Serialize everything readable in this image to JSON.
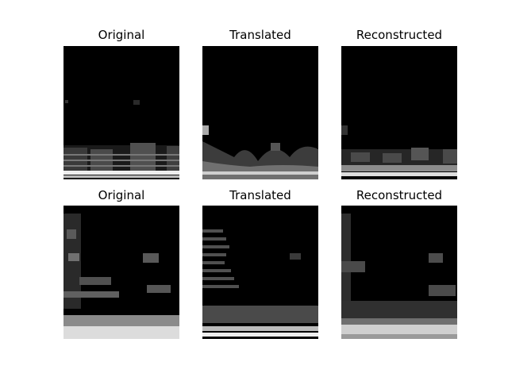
{
  "figure": {
    "background": "#ffffff",
    "panels": [
      {
        "title": "Original",
        "row": 1,
        "col": 1,
        "image": "spectrogram-original-1"
      },
      {
        "title": "Translated",
        "row": 1,
        "col": 2,
        "image": "spectrogram-translated-1"
      },
      {
        "title": "Reconstructed",
        "row": 1,
        "col": 3,
        "image": "spectrogram-reconstructed-1"
      },
      {
        "title": "Original",
        "row": 2,
        "col": 1,
        "image": "spectrogram-original-2"
      },
      {
        "title": "Translated",
        "row": 2,
        "col": 2,
        "image": "spectrogram-translated-2"
      },
      {
        "title": "Reconstructed",
        "row": 2,
        "col": 3,
        "image": "spectrogram-reconstructed-2"
      }
    ],
    "colormap": [
      "#000000",
      "#ffffff"
    ]
  }
}
